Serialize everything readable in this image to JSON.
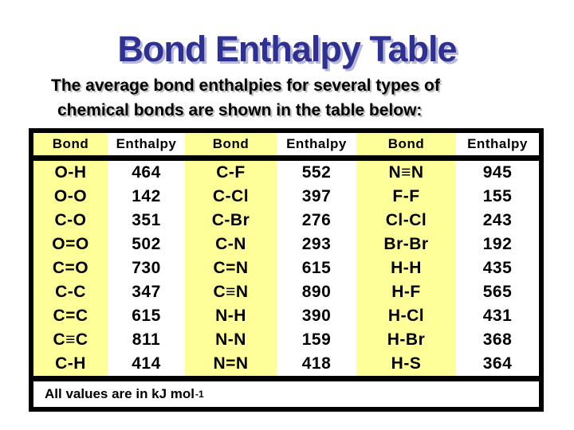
{
  "slide": {
    "title": "Bond Enthalpy Table",
    "subtitle_line1": "The average bond enthalpies for several types of",
    "subtitle_line2": "chemical bonds are shown in the table below:"
  },
  "table": {
    "column_headers": [
      "Bond",
      "Enthalpy",
      "Bond",
      "Enthalpy",
      "Bond",
      "Enthalpy"
    ],
    "groups": [
      {
        "rows": [
          {
            "bond": "O-H",
            "enthalpy": "464"
          },
          {
            "bond": "O-O",
            "enthalpy": "142"
          },
          {
            "bond": "C-O",
            "enthalpy": "351"
          },
          {
            "bond": "O=O",
            "enthalpy": "502"
          },
          {
            "bond": "C=O",
            "enthalpy": "730"
          },
          {
            "bond": "C-C",
            "enthalpy": "347"
          },
          {
            "bond": "C=C",
            "enthalpy": "615"
          },
          {
            "bond": "C≡C",
            "enthalpy": "811"
          },
          {
            "bond": "C-H",
            "enthalpy": "414"
          }
        ]
      },
      {
        "rows": [
          {
            "bond": "C-F",
            "enthalpy": "552"
          },
          {
            "bond": "C-Cl",
            "enthalpy": "397"
          },
          {
            "bond": "C-Br",
            "enthalpy": "276"
          },
          {
            "bond": "C-N",
            "enthalpy": "293"
          },
          {
            "bond": "C=N",
            "enthalpy": "615"
          },
          {
            "bond": "C≡N",
            "enthalpy": "890"
          },
          {
            "bond": "N-H",
            "enthalpy": "390"
          },
          {
            "bond": "N-N",
            "enthalpy": "159"
          },
          {
            "bond": "N=N",
            "enthalpy": "418"
          }
        ]
      },
      {
        "rows": [
          {
            "bond": "N≡N",
            "enthalpy": "945"
          },
          {
            "bond": "F-F",
            "enthalpy": "155"
          },
          {
            "bond": "Cl-Cl",
            "enthalpy": "243"
          },
          {
            "bond": "Br-Br",
            "enthalpy": "192"
          },
          {
            "bond": "H-H",
            "enthalpy": "435"
          },
          {
            "bond": "H-F",
            "enthalpy": "565"
          },
          {
            "bond": "H-Cl",
            "enthalpy": "431"
          },
          {
            "bond": "H-Br",
            "enthalpy": "368"
          },
          {
            "bond": "H-S",
            "enthalpy": "364"
          }
        ]
      }
    ],
    "footnote_text": "All values are in kJ mol",
    "footnote_superscript": "-1"
  },
  "colors": {
    "background": "#FFFFFF",
    "title_text": "#2E3192",
    "title_shadow": "#B8B8D8",
    "body_text": "#000000",
    "bond_column_highlight": "#FFFF99",
    "table_border": "#000000"
  }
}
